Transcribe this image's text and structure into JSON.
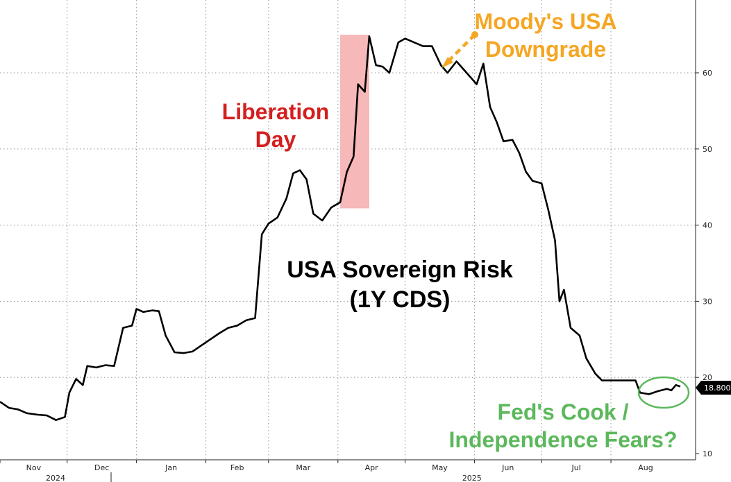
{
  "chart_data": {
    "type": "line",
    "title": "USA Sovereign Risk",
    "subtitle": "(1Y CDS)",
    "xlabel": "",
    "ylabel": "",
    "ylim": [
      10,
      70
    ],
    "y_ticks": [
      "10",
      "20",
      "30",
      "40",
      "50",
      "60"
    ],
    "x_month_labels": [
      "Nov",
      "Dec",
      "Jan",
      "Feb",
      "Mar",
      "Apr",
      "May",
      "Jun",
      "Jul",
      "Aug"
    ],
    "x_year_labels": [
      "2024",
      "2025"
    ],
    "grid": true,
    "last_value_label": "18.800",
    "series": [
      {
        "color": "#000000",
        "points": [
          [
            "2024-11-01",
            16.8
          ],
          [
            "2024-11-05",
            16.0
          ],
          [
            "2024-11-09",
            15.8
          ],
          [
            "2024-11-13",
            15.3
          ],
          [
            "2024-11-18",
            15.1
          ],
          [
            "2024-11-22",
            15.0
          ],
          [
            "2024-11-26",
            14.4
          ],
          [
            "2024-11-30",
            14.8
          ],
          [
            "2024-12-02",
            18.0
          ],
          [
            "2024-12-05",
            19.8
          ],
          [
            "2024-12-08",
            19.0
          ],
          [
            "2024-12-10",
            21.5
          ],
          [
            "2024-12-14",
            21.3
          ],
          [
            "2024-12-18",
            21.6
          ],
          [
            "2024-12-22",
            21.5
          ],
          [
            "2024-12-26",
            26.5
          ],
          [
            "2024-12-30",
            26.8
          ],
          [
            "2025-01-01",
            29.0
          ],
          [
            "2025-01-04",
            28.6
          ],
          [
            "2025-01-08",
            28.8
          ],
          [
            "2025-01-11",
            28.7
          ],
          [
            "2025-01-14",
            25.5
          ],
          [
            "2025-01-18",
            23.3
          ],
          [
            "2025-01-22",
            23.2
          ],
          [
            "2025-01-26",
            23.4
          ],
          [
            "2025-01-30",
            24.2
          ],
          [
            "2025-02-03",
            25.0
          ],
          [
            "2025-02-07",
            25.8
          ],
          [
            "2025-02-11",
            26.5
          ],
          [
            "2025-02-15",
            26.8
          ],
          [
            "2025-02-19",
            27.5
          ],
          [
            "2025-02-23",
            27.8
          ],
          [
            "2025-02-26",
            38.8
          ],
          [
            "2025-03-01",
            40.2
          ],
          [
            "2025-03-05",
            41.0
          ],
          [
            "2025-03-09",
            43.5
          ],
          [
            "2025-03-12",
            46.8
          ],
          [
            "2025-03-15",
            47.2
          ],
          [
            "2025-03-18",
            46.0
          ],
          [
            "2025-03-21",
            41.5
          ],
          [
            "2025-03-25",
            40.6
          ],
          [
            "2025-03-29",
            42.3
          ],
          [
            "2025-04-02",
            43.0
          ],
          [
            "2025-04-05",
            47.0
          ],
          [
            "2025-04-08",
            49.0
          ],
          [
            "2025-04-10",
            58.5
          ],
          [
            "2025-04-13",
            57.5
          ],
          [
            "2025-04-15",
            64.8
          ],
          [
            "2025-04-18",
            61.0
          ],
          [
            "2025-04-21",
            60.8
          ],
          [
            "2025-04-24",
            60.0
          ],
          [
            "2025-04-28",
            64.0
          ],
          [
            "2025-05-01",
            64.5
          ],
          [
            "2025-05-05",
            64.0
          ],
          [
            "2025-05-09",
            63.5
          ],
          [
            "2025-05-13",
            63.5
          ],
          [
            "2025-05-17",
            61.0
          ],
          [
            "2025-05-20",
            60.0
          ],
          [
            "2025-05-24",
            61.5
          ],
          [
            "2025-05-27",
            60.5
          ],
          [
            "2025-05-30",
            59.5
          ],
          [
            "2025-06-02",
            58.5
          ],
          [
            "2025-06-05",
            61.2
          ],
          [
            "2025-06-08",
            55.5
          ],
          [
            "2025-06-11",
            53.5
          ],
          [
            "2025-06-14",
            51.0
          ],
          [
            "2025-06-18",
            51.2
          ],
          [
            "2025-06-21",
            49.5
          ],
          [
            "2025-06-24",
            47.0
          ],
          [
            "2025-06-27",
            45.8
          ],
          [
            "2025-07-01",
            45.5
          ],
          [
            "2025-07-04",
            42.0
          ],
          [
            "2025-07-07",
            38.0
          ],
          [
            "2025-07-09",
            30.0
          ],
          [
            "2025-07-11",
            31.5
          ],
          [
            "2025-07-14",
            26.5
          ],
          [
            "2025-07-18",
            25.5
          ],
          [
            "2025-07-21",
            22.5
          ],
          [
            "2025-07-25",
            20.5
          ],
          [
            "2025-07-28",
            19.6
          ],
          [
            "2025-08-02",
            19.6
          ],
          [
            "2025-08-08",
            19.6
          ],
          [
            "2025-08-12",
            19.6
          ],
          [
            "2025-08-14",
            18.0
          ],
          [
            "2025-08-18",
            17.8
          ],
          [
            "2025-08-22",
            18.2
          ],
          [
            "2025-08-26",
            18.5
          ],
          [
            "2025-08-28",
            18.3
          ],
          [
            "2025-08-30",
            19.0
          ],
          [
            "2025-09-01",
            18.8
          ]
        ]
      }
    ],
    "annotations": [
      {
        "text_lines": [
          "Liberation",
          "Day"
        ],
        "color": "#d41f1f"
      },
      {
        "text_lines": [
          "Moody's USA",
          "Downgrade"
        ],
        "color": "#f5a623"
      },
      {
        "text_lines": [
          "Fed's Cook /",
          "Independence Fears?"
        ],
        "color": "#5cb85c"
      }
    ],
    "shaded_band": {
      "x_start": "2025-04-02",
      "x_end": "2025-04-15",
      "y_min": 42.2,
      "y_max": 65.0,
      "color": "#f6b8b8"
    }
  }
}
